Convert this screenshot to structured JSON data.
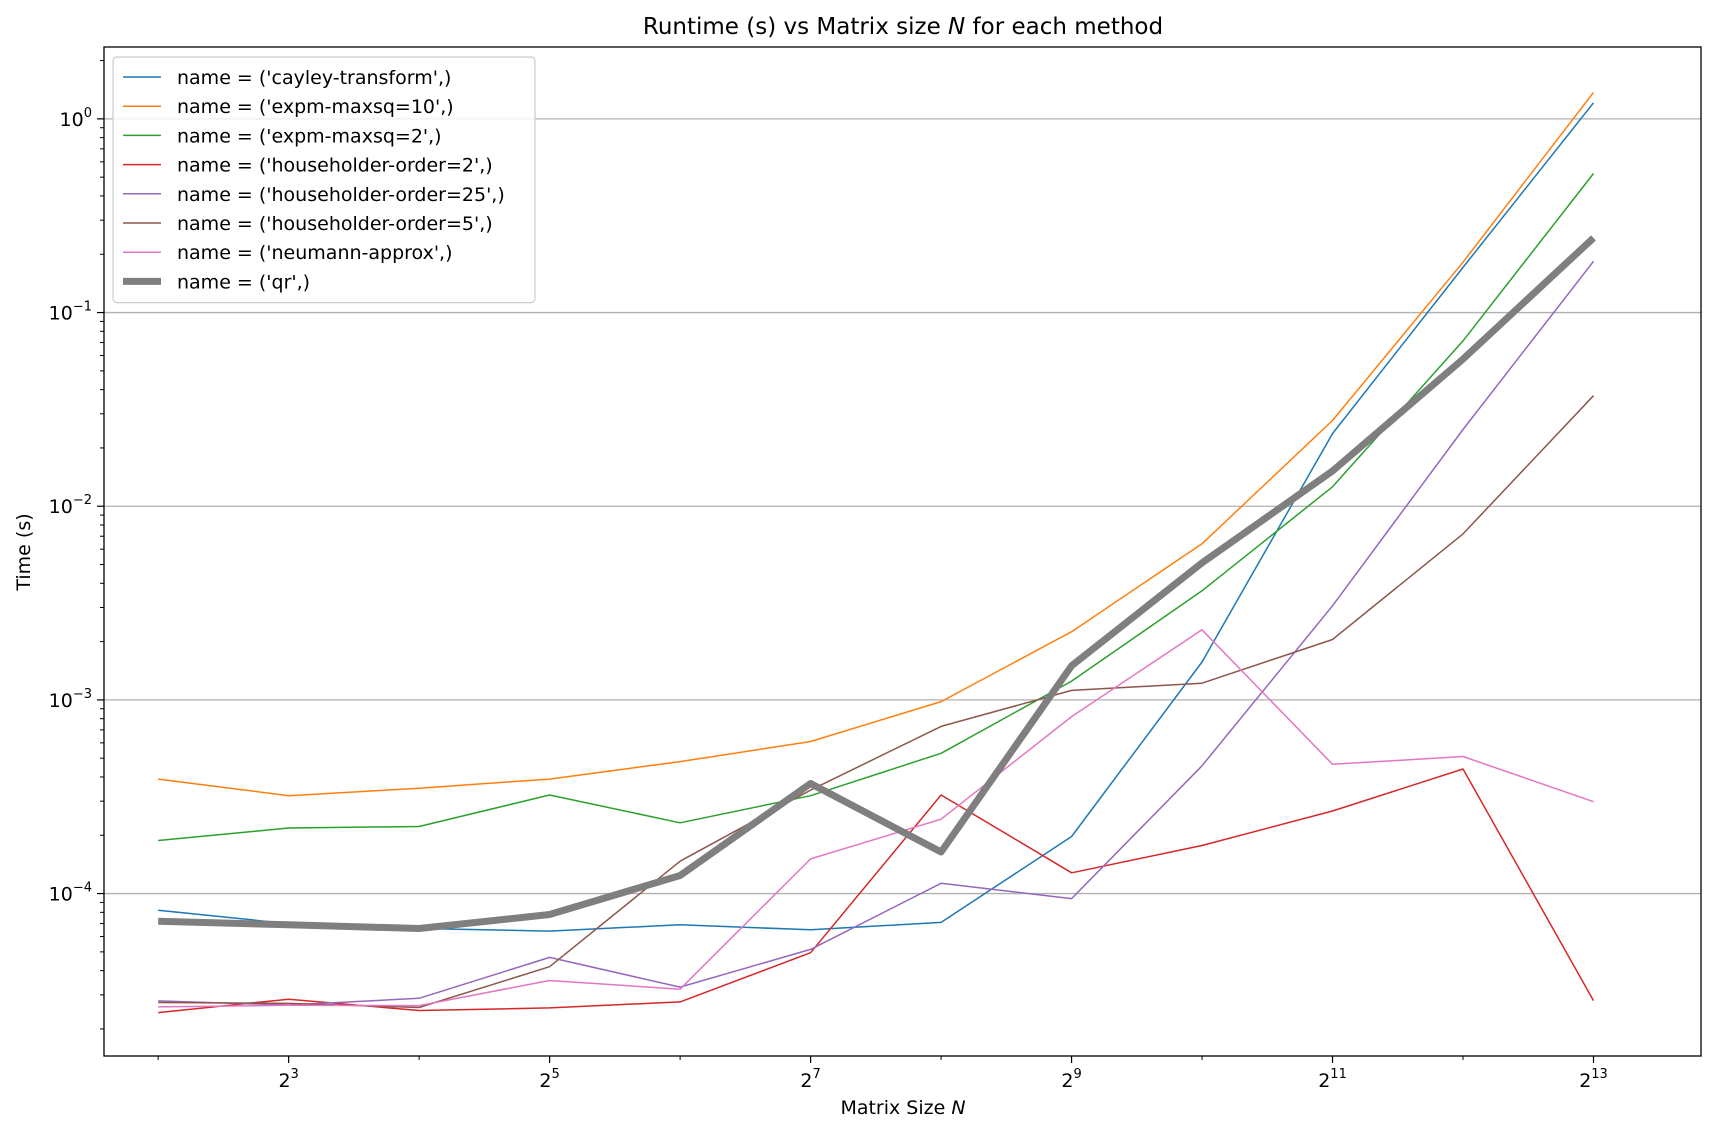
{
  "chart_data": {
    "type": "line",
    "title": "Runtime (s) vs Matrix size N for each method",
    "title_parts": {
      "before": "Runtime (s) vs Matrix size ",
      "var": "N",
      "after": " for each method"
    },
    "xlabel": "Matrix Size N",
    "xlabel_parts": {
      "before": "Matrix Size ",
      "var": "N"
    },
    "ylabel": "Time (s)",
    "xscale": "log2",
    "yscale": "log10",
    "xlim": [
      3.0,
      14500
    ],
    "ylim": [
      1.45e-05,
      2.35
    ],
    "x": [
      4,
      8,
      16,
      32,
      64,
      128,
      256,
      512,
      1024,
      2048,
      4096,
      8192
    ],
    "x_ticks": [
      {
        "value": 8,
        "base": "2",
        "exp": "3"
      },
      {
        "value": 32,
        "base": "2",
        "exp": "5"
      },
      {
        "value": 128,
        "base": "2",
        "exp": "7"
      },
      {
        "value": 512,
        "base": "2",
        "exp": "9"
      },
      {
        "value": 2048,
        "base": "2",
        "exp": "11"
      },
      {
        "value": 8192,
        "base": "2",
        "exp": "13"
      }
    ],
    "y_ticks": [
      {
        "value": 0.0001,
        "base": "10",
        "exp": "−4"
      },
      {
        "value": 0.001,
        "base": "10",
        "exp": "−3"
      },
      {
        "value": 0.01,
        "base": "10",
        "exp": "−2"
      },
      {
        "value": 0.1,
        "base": "10",
        "exp": "−1"
      },
      {
        "value": 1,
        "base": "10",
        "exp": "0"
      }
    ],
    "grid": "y-major",
    "legend_position": "top-left",
    "series": [
      {
        "name": "name = ('cayley-transform',)",
        "color": "#1f77b4",
        "width": 1.5,
        "values": [
          8.2e-05,
          7e-05,
          6.6e-05,
          6.4e-05,
          6.9e-05,
          6.5e-05,
          7.1e-05,
          0.000197,
          0.00157,
          0.0237,
          0.171,
          1.21
        ]
      },
      {
        "name": "name = ('expm-maxsq=10',)",
        "color": "#ff7f0e",
        "width": 1.5,
        "values": [
          0.00039,
          0.00032,
          0.00035,
          0.00039,
          0.00048,
          0.00061,
          0.00098,
          0.00225,
          0.0064,
          0.0277,
          0.182,
          1.37
        ]
      },
      {
        "name": "name = ('expm-maxsq=2',)",
        "color": "#2ca02c",
        "width": 1.5,
        "values": [
          0.000188,
          0.000218,
          0.000222,
          0.000323,
          0.000232,
          0.00032,
          0.00053,
          0.00125,
          0.00366,
          0.0126,
          0.0714,
          0.522
        ]
      },
      {
        "name": "name = ('householder-order=2',)",
        "color": "#d62728",
        "width": 1.5,
        "values": [
          2.43e-05,
          2.85e-05,
          2.49e-05,
          2.57e-05,
          2.76e-05,
          4.95e-05,
          0.000323,
          0.000128,
          0.000177,
          0.000267,
          0.00044,
          2.8e-05
        ]
      },
      {
        "name": "name = ('householder-order=25',)",
        "color": "#9467bd",
        "width": 1.5,
        "values": [
          2.79e-05,
          2.66e-05,
          2.88e-05,
          4.68e-05,
          3.29e-05,
          5.15e-05,
          0.000113,
          9.42e-05,
          0.000457,
          0.00306,
          0.0249,
          0.184
        ]
      },
      {
        "name": "name = ('householder-order=5',)",
        "color": "#8c564b",
        "width": 1.5,
        "values": [
          2.74e-05,
          2.71e-05,
          2.58e-05,
          4.19e-05,
          0.000147,
          0.000342,
          0.00073,
          0.00112,
          0.00122,
          0.00205,
          0.0072,
          0.0372
        ]
      },
      {
        "name": "name = ('neumann-approx',)",
        "color": "#e377c2",
        "width": 1.5,
        "values": [
          2.6e-05,
          2.65e-05,
          2.64e-05,
          3.56e-05,
          3.21e-05,
          0.000151,
          0.000242,
          0.00082,
          0.0023,
          0.000465,
          0.00051,
          0.000298
        ]
      },
      {
        "name": "name = ('qr',)",
        "color": "#7f7f7f",
        "width": 7,
        "values": [
          7.2e-05,
          6.9e-05,
          6.6e-05,
          7.8e-05,
          0.000124,
          0.00037,
          0.000164,
          0.0015,
          0.0051,
          0.0152,
          0.0575,
          0.243
        ]
      }
    ]
  }
}
